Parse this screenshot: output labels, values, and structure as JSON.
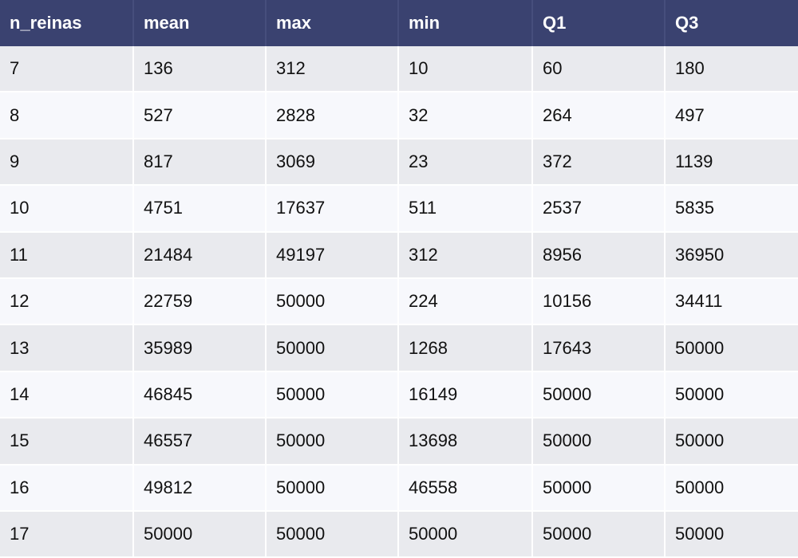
{
  "chart_data": {
    "type": "table",
    "columns": [
      "n_reinas",
      "mean",
      "max",
      "min",
      "Q1",
      "Q3"
    ],
    "rows": [
      [
        "7",
        "136",
        "312",
        "10",
        "60",
        "180"
      ],
      [
        "8",
        "527",
        "2828",
        "32",
        "264",
        "497"
      ],
      [
        "9",
        "817",
        "3069",
        "23",
        "372",
        "1139"
      ],
      [
        "10",
        "4751",
        "17637",
        "511",
        "2537",
        "5835"
      ],
      [
        "11",
        "21484",
        "49197",
        "312",
        "8956",
        "36950"
      ],
      [
        "12",
        "22759",
        "50000",
        "224",
        "10156",
        "34411"
      ],
      [
        "13",
        "35989",
        "50000",
        "1268",
        "17643",
        "50000"
      ],
      [
        "14",
        "46845",
        "50000",
        "16149",
        "50000",
        "50000"
      ],
      [
        "15",
        "46557",
        "50000",
        "13698",
        "50000",
        "50000"
      ],
      [
        "16",
        "49812",
        "50000",
        "46558",
        "50000",
        "50000"
      ],
      [
        "17",
        "50000",
        "50000",
        "50000",
        "50000",
        "50000"
      ]
    ]
  },
  "colors": {
    "header_bg": "#3a4270",
    "header_divider": "#464e7c",
    "row_odd": "#e9eaee",
    "row_even": "#f7f8fc",
    "row_separator": "#ffffff"
  }
}
